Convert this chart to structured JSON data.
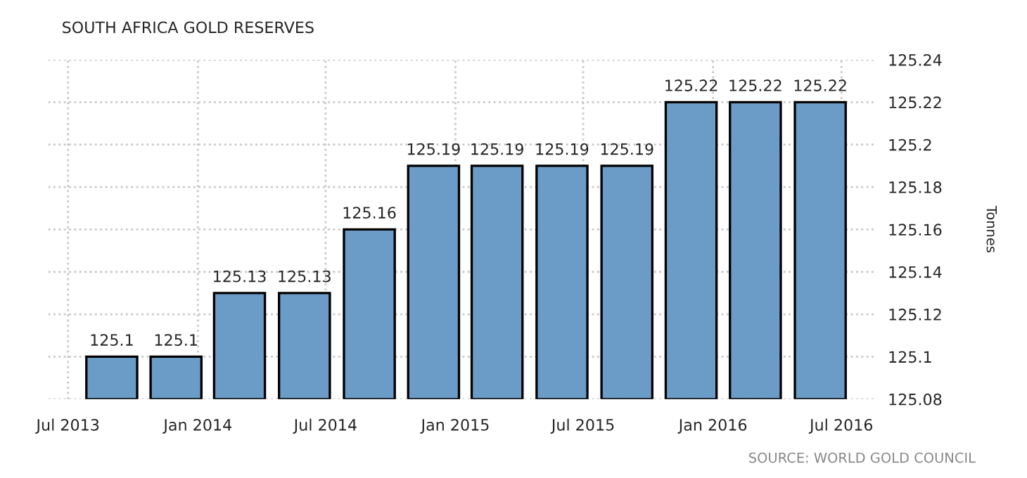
{
  "chart_data": {
    "type": "bar",
    "title": "SOUTH AFRICA GOLD RESERVES",
    "ylabel": "Tonnes",
    "x": [
      "2013-09-01",
      "2013-12-01",
      "2014-03-01",
      "2014-06-01",
      "2014-09-01",
      "2014-12-01",
      "2015-03-01",
      "2015-06-01",
      "2015-09-01",
      "2015-12-01",
      "2016-03-01",
      "2016-06-01"
    ],
    "values": [
      125.1,
      125.1,
      125.13,
      125.13,
      125.16,
      125.19,
      125.19,
      125.19,
      125.19,
      125.22,
      125.22,
      125.22
    ],
    "color": "#6a9cc7",
    "data_labels": true,
    "xlim": [
      "2013-06-03",
      "2016-08-19"
    ],
    "xticks": [
      {
        "value": "2013-07-01",
        "label": "Jul 2013"
      },
      {
        "value": "2014-01-01",
        "label": "Jan 2014"
      },
      {
        "value": "2014-07-01",
        "label": "Jul 2014"
      },
      {
        "value": "2015-01-01",
        "label": "Jan 2015"
      },
      {
        "value": "2015-07-01",
        "label": "Jul 2015"
      },
      {
        "value": "2016-01-01",
        "label": "Jan 2016"
      },
      {
        "value": "2016-07-01",
        "label": "Jul 2016"
      }
    ],
    "ylim": [
      125.08,
      125.24
    ],
    "yticks": [
      125.08,
      125.1,
      125.12,
      125.14,
      125.16,
      125.18,
      125.2,
      125.22,
      125.24
    ],
    "grid": true,
    "annotations": [
      "SOURCE: WORLD GOLD COUNCIL"
    ]
  }
}
